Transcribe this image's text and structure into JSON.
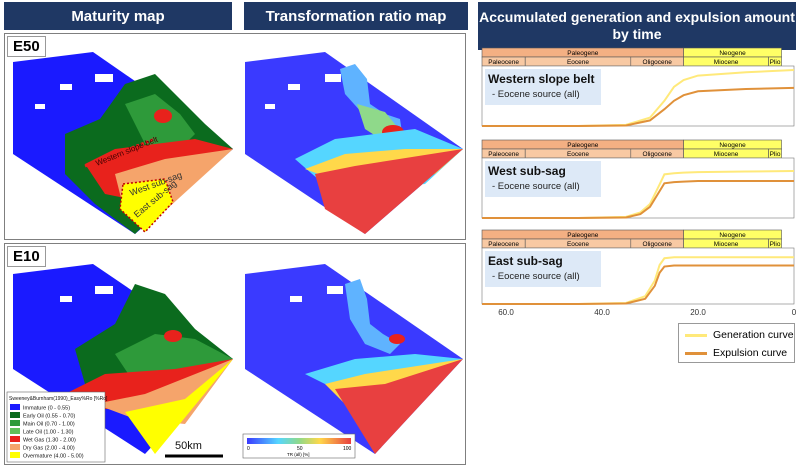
{
  "headers": {
    "maturity": "Maturity map",
    "transformation": "Transformation ratio map",
    "accumulated": "Accumulated generation and expulsion amount by time"
  },
  "panels": {
    "e50": {
      "label": "E50"
    },
    "e10": {
      "label": "E10"
    }
  },
  "map_annotations": {
    "west_sub_sag": "West sub-sag",
    "east_sub_sag": "East sub-sag",
    "western_slope": "Western slope belt",
    "scale": "50km"
  },
  "maturity_legend": {
    "title": "Sweeney&Burnham(1990)_Easy%Ro [%Ro]",
    "items": [
      {
        "label": "Immature (0 - 0.55)",
        "color": "#1a1aff"
      },
      {
        "label": "Early Oil (0.55 - 0.70)",
        "color": "#0b6b1e"
      },
      {
        "label": "Main Oil (0.70 - 1.00)",
        "color": "#2e9a3a"
      },
      {
        "label": "Late Oil (1.00 - 1.30)",
        "color": "#5fc05a"
      },
      {
        "label": "Wet Gas (1.30 - 2.00)",
        "color": "#e8221c"
      },
      {
        "label": "Dry Gas (2.00 - 4.00)",
        "color": "#f5a46b"
      },
      {
        "label": "Overmature (4.00 - 5.00)",
        "color": "#ffff00"
      }
    ]
  },
  "tr_legend": {
    "ticks": [
      "0",
      "50",
      "100"
    ],
    "unit": "TR (all) [%]"
  },
  "timeline": {
    "eras": [
      "Paleogene",
      "Neogene"
    ],
    "epochs": [
      "Paleocene",
      "Eocene",
      "Oligocene",
      "Miocene",
      "Plio"
    ],
    "axis_ticks": [
      "60.0",
      "40.0",
      "20.0",
      "0"
    ]
  },
  "charts": [
    {
      "title": "Western slope belt",
      "subtitle": "- Eocene source (all)"
    },
    {
      "title": "West sub-sag",
      "subtitle": "- Eocene source (all)"
    },
    {
      "title": "East sub-sag",
      "subtitle": "- Eocene source (all)"
    }
  ],
  "curve_legend": {
    "generation": "Generation curve",
    "expulsion": "Expulsion curve",
    "generation_color": "#ffe97a",
    "expulsion_color": "#e0913a"
  },
  "chart_data": [
    {
      "type": "line",
      "title": "Western slope belt",
      "x": [
        65,
        45,
        35,
        30,
        27,
        25,
        23,
        20,
        10,
        0
      ],
      "series": [
        {
          "name": "Generation curve",
          "values": [
            0,
            0,
            0.02,
            0.15,
            0.45,
            0.7,
            0.82,
            0.9,
            0.96,
            1.0
          ]
        },
        {
          "name": "Expulsion curve",
          "values": [
            0,
            0,
            0.01,
            0.1,
            0.3,
            0.45,
            0.55,
            0.62,
            0.66,
            0.68
          ]
        }
      ]
    },
    {
      "type": "line",
      "title": "West sub-sag",
      "x": [
        65,
        45,
        35,
        32,
        30,
        28,
        27,
        25,
        23,
        20,
        10,
        0
      ],
      "series": [
        {
          "name": "Generation curve",
          "values": [
            0,
            0,
            0.02,
            0.1,
            0.25,
            0.6,
            0.78,
            0.8,
            0.81,
            0.82,
            0.83,
            0.84
          ]
        },
        {
          "name": "Expulsion curve",
          "values": [
            0,
            0,
            0.01,
            0.07,
            0.2,
            0.48,
            0.62,
            0.64,
            0.65,
            0.66,
            0.66,
            0.66
          ]
        }
      ]
    },
    {
      "type": "line",
      "title": "East sub-sag",
      "x": [
        65,
        45,
        35,
        31,
        29,
        28,
        27,
        25,
        23,
        20,
        10,
        0
      ],
      "series": [
        {
          "name": "Generation curve",
          "values": [
            0,
            0,
            0.02,
            0.15,
            0.45,
            0.75,
            0.88,
            0.9,
            0.9,
            0.9,
            0.9,
            0.9
          ]
        },
        {
          "name": "Expulsion curve",
          "values": [
            0,
            0,
            0.01,
            0.1,
            0.35,
            0.6,
            0.72,
            0.74,
            0.74,
            0.74,
            0.74,
            0.74
          ]
        }
      ]
    }
  ]
}
